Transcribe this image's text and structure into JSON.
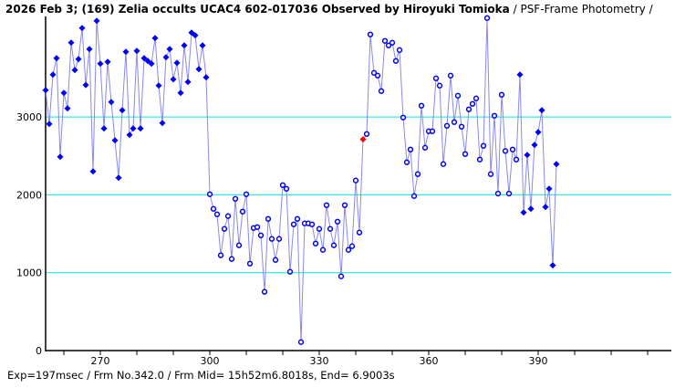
{
  "chart_data": {
    "type": "line",
    "title": "2026 Feb 3; (169) Zelia occults UCAC4 602-017036 Observed by Hiroyuki Tomioka",
    "subtitle": "/ PSF-Frame Photometry /",
    "xlabel": "",
    "ylabel": "",
    "xlim": [
      255,
      412
    ],
    "ylim": [
      0,
      4500
    ],
    "x_ticks": [
      270,
      300,
      330,
      360,
      390
    ],
    "y_ticks": [
      0,
      1000,
      2000,
      3000
    ],
    "grid_lines": [
      1000,
      2000,
      3000
    ],
    "x_start": 255,
    "highlight_frame": 342,
    "open_marker_range": [
      300,
      384
    ],
    "values": [
      3344,
      2910,
      3543,
      3754,
      2488,
      3309,
      3109,
      3953,
      3602,
      3742,
      4141,
      3410,
      3871,
      2301,
      4234,
      3684,
      2852,
      3707,
      3191,
      2699,
      2219,
      3086,
      3836,
      2770,
      2852,
      3848,
      2852,
      3754,
      3719,
      3684,
      4012,
      3402,
      2922,
      3766,
      3871,
      3484,
      3695,
      3309,
      3918,
      3449,
      4082,
      4047,
      3613,
      3918,
      3508,
      2008,
      1820,
      1750,
      1223,
      1563,
      1727,
      1176,
      1949,
      1352,
      1785,
      2008,
      1117,
      1574,
      1586,
      1480,
      754,
      1691,
      1434,
      1164,
      1434,
      2125,
      2078,
      1012,
      1621,
      1691,
      109,
      1633,
      1633,
      1621,
      1375,
      1563,
      1293,
      1867,
      1563,
      1352,
      1656,
      953,
      1867,
      1293,
      1340,
      2184,
      1516,
      2712,
      2781,
      4059,
      3566,
      3531,
      3332,
      3977,
      3918,
      3953,
      3719,
      3859,
      2992,
      2418,
      2582,
      1984,
      2266,
      3145,
      2605,
      2816,
      2816,
      3496,
      3402,
      2395,
      2887,
      3531,
      2934,
      3273,
      2875,
      2523,
      3098,
      3168,
      3238,
      2453,
      2629,
      4270,
      2266,
      3016,
      2016,
      3285,
      2563,
      2016,
      2582,
      2453,
      3543,
      1773,
      2512,
      1820,
      2641,
      2805,
      3086,
      1844,
      2078,
      1094,
      2395
    ],
    "colors": {
      "line": "#8888ee",
      "marker": "#0000ff",
      "highlight": "#ff0000",
      "grid": "#00e5ee",
      "axis": "#000000"
    }
  },
  "footer": "Exp=197msec / Frm No.342.0 / Frm Mid= 15h52m6.8018s,  End= 6.9003s"
}
